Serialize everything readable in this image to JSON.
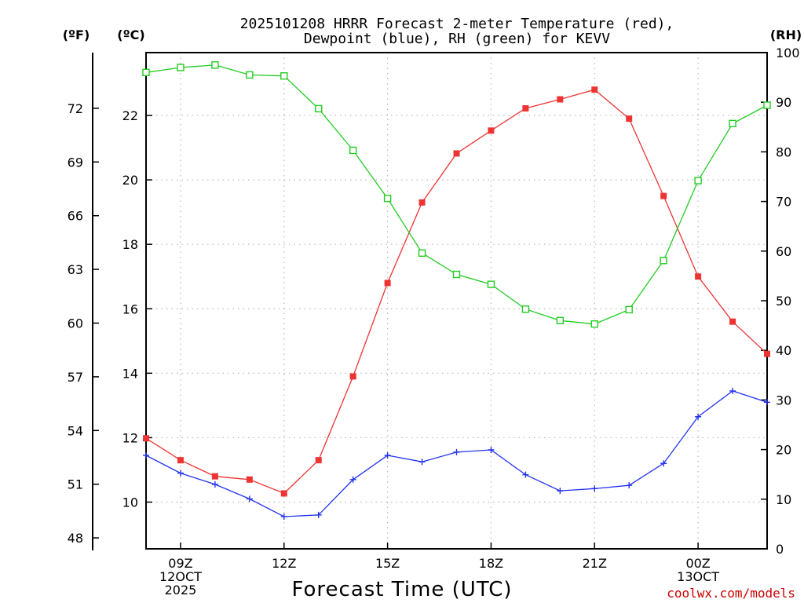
{
  "chart_data": {
    "type": "line",
    "title_line1": "2025101208 HRRR Forecast 2-meter Temperature (red),",
    "title_line2": "Dewpoint (blue), RH (green) for KEVV",
    "axis_units": {
      "fahrenheit": "(ºF)",
      "celsius": "(ºC)",
      "rh": "(RH)"
    },
    "xlabel": "Forecast Time (UTC)",
    "x_hours": [
      0,
      1,
      2,
      3,
      4,
      5,
      6,
      7,
      8,
      9,
      10,
      11,
      12,
      13,
      14,
      15,
      16,
      17,
      18
    ],
    "x_start_hour_utc": 8,
    "xlim": [
      0,
      18
    ],
    "x_ticks": [
      {
        "hour": 1,
        "lines": [
          "09Z",
          "12OCT",
          "2025"
        ]
      },
      {
        "hour": 4,
        "lines": [
          "12Z"
        ]
      },
      {
        "hour": 7,
        "lines": [
          "15Z"
        ]
      },
      {
        "hour": 10,
        "lines": [
          "18Z"
        ]
      },
      {
        "hour": 13,
        "lines": [
          "21Z"
        ]
      },
      {
        "hour": 16,
        "lines": [
          "00Z",
          "13OCT"
        ]
      }
    ],
    "celsius_range": [
      8.55,
      23.95
    ],
    "celsius_ticks": [
      10,
      12,
      14,
      16,
      18,
      20,
      22
    ],
    "fahrenheit_ticks": [
      48,
      51,
      54,
      57,
      60,
      63,
      66,
      69,
      72
    ],
    "rh_range": [
      0,
      100
    ],
    "rh_ticks": [
      0,
      10,
      20,
      30,
      40,
      50,
      60,
      70,
      80,
      90,
      100
    ],
    "series": [
      {
        "name": "Temperature",
        "units": "C",
        "color": "#ee3333",
        "marker": "filled-square",
        "values": [
          11.98,
          11.3,
          10.8,
          10.7,
          10.27,
          11.3,
          13.9,
          16.8,
          19.3,
          20.82,
          21.53,
          22.22,
          22.5,
          22.8,
          21.9,
          19.5,
          17.0,
          15.6,
          14.6
        ]
      },
      {
        "name": "Dewpoint",
        "units": "C",
        "color": "#2233ee",
        "marker": "plus",
        "values": [
          11.45,
          10.9,
          10.55,
          10.1,
          9.55,
          9.6,
          10.7,
          11.45,
          11.25,
          11.55,
          11.62,
          10.85,
          10.35,
          10.42,
          10.52,
          11.2,
          12.65,
          13.45,
          13.1
        ]
      },
      {
        "name": "Relative Humidity",
        "units": "%",
        "color": "#22cc22",
        "marker": "open-square",
        "values": [
          96,
          97,
          97.5,
          95.5,
          95.3,
          88.7,
          80.3,
          70.6,
          59.6,
          55.3,
          53.3,
          48.3,
          46.0,
          45.3,
          48.2,
          58.1,
          74.2,
          85.7,
          89.4
        ]
      }
    ],
    "grid": true,
    "credit": "coolwx.com/models"
  }
}
